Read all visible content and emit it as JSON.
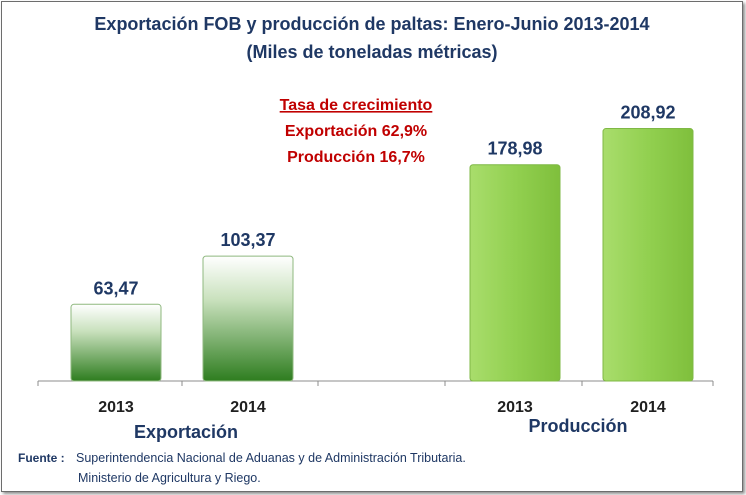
{
  "chart_data": {
    "type": "bar",
    "title": "Exportación FOB y producción de paltas:  Enero-Junio 2013-2014",
    "subtitle": "(Miles de toneladas métricas)",
    "groups": [
      {
        "name": "Exportación",
        "categories": [
          "2013",
          "2014"
        ],
        "values": [
          63.47,
          103.37
        ],
        "labels": [
          "63,47",
          "103,37"
        ],
        "color": "#2e7d1f"
      },
      {
        "name": "Producción",
        "categories": [
          "2013",
          "2014"
        ],
        "values": [
          178.98,
          208.92
        ],
        "labels": [
          "178,98",
          "208,92"
        ],
        "color": "#92d050"
      }
    ],
    "ylim": [
      0,
      240
    ],
    "annotation": {
      "heading": "Tasa de crecimiento",
      "lines": [
        "Exportación 62,9%",
        "Producción 16,7%"
      ]
    }
  },
  "source": {
    "label": "Fuente :",
    "line1": "Superintendencia Nacional de Aduanas y   de Administración Tributaria.",
    "line2": "Ministerio de Agricultura y Riego."
  }
}
